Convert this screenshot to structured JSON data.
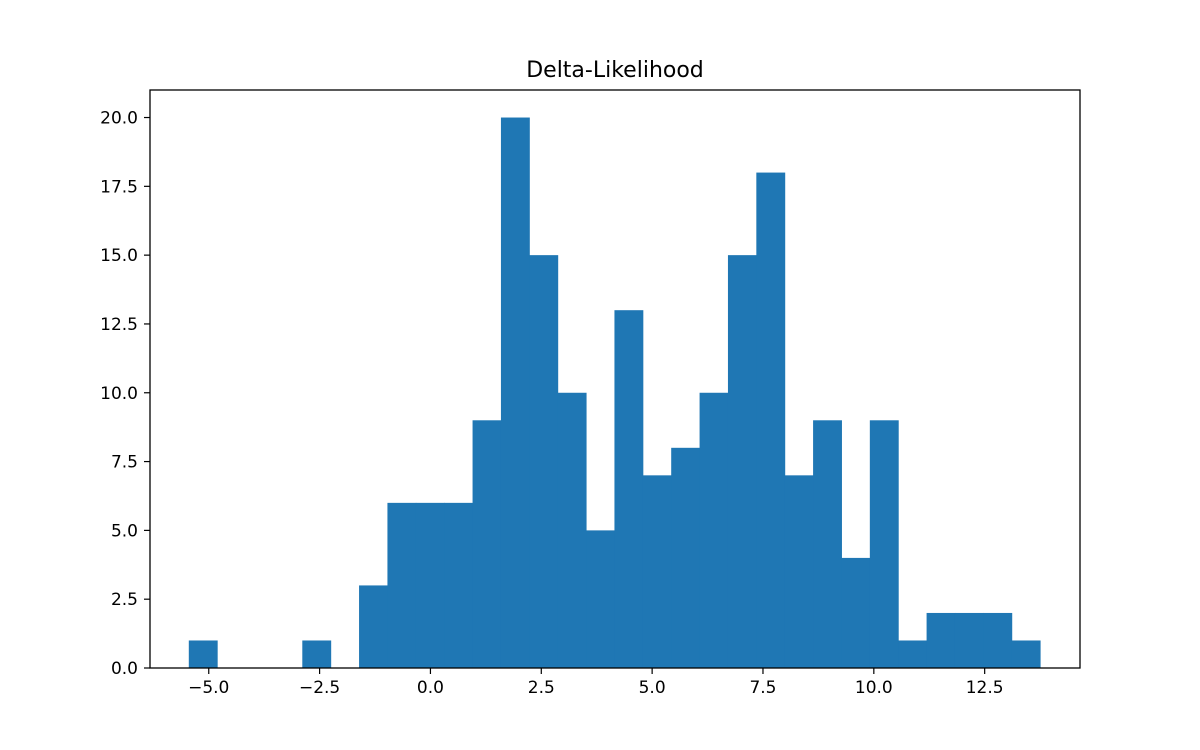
{
  "chart_data": {
    "type": "bar",
    "title": "Delta-Likelihood",
    "xlabel": "",
    "ylabel": "",
    "bar_color": "#1f77b4",
    "xlim": [
      -6.325,
      14.65
    ],
    "ylim": [
      0,
      21
    ],
    "xticks": [
      -5.0,
      -2.5,
      0.0,
      2.5,
      5.0,
      7.5,
      10.0,
      12.5
    ],
    "xtick_labels": [
      "−5.0",
      "−2.5",
      "0.0",
      "2.5",
      "5.0",
      "7.5",
      "10.0",
      "12.5"
    ],
    "yticks": [
      0.0,
      2.5,
      5.0,
      7.5,
      10.0,
      12.5,
      15.0,
      17.5,
      20.0
    ],
    "ytick_labels": [
      "0.0",
      "2.5",
      "5.0",
      "7.5",
      "10.0",
      "12.5",
      "15.0",
      "17.5",
      "20.0"
    ],
    "bin_start": -5.45,
    "bin_width": 0.64,
    "counts": [
      1,
      0,
      0,
      0,
      1,
      0,
      3,
      6,
      6,
      6,
      9,
      20,
      15,
      10,
      5,
      13,
      7,
      8,
      10,
      15,
      18,
      7,
      9,
      4,
      9,
      1,
      2,
      2,
      2,
      1
    ],
    "grid": false,
    "legend": "none"
  }
}
